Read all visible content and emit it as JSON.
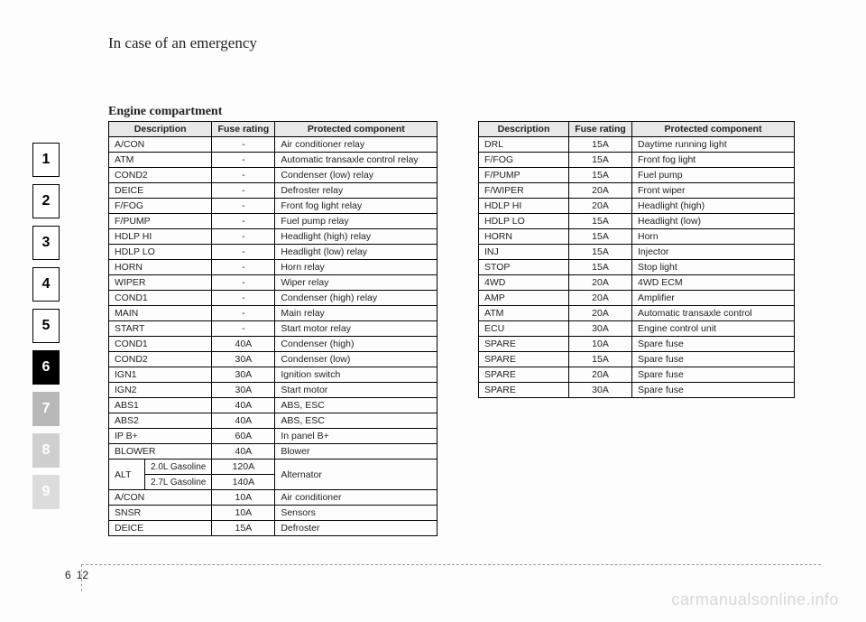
{
  "header": "In case of an emergency",
  "section": "Engine compartment",
  "tabs": [
    "1",
    "2",
    "3",
    "4",
    "5",
    "6",
    "7",
    "8",
    "9"
  ],
  "activeTab": 5,
  "tableHeaders": [
    "Description",
    "Fuse rating",
    "Protected component"
  ],
  "leftRows": [
    [
      "A/CON",
      "-",
      "Air conditioner relay"
    ],
    [
      "ATM",
      "-",
      "Automatic transaxle control relay"
    ],
    [
      "COND2",
      "-",
      "Condenser (low) relay"
    ],
    [
      "DEICE",
      "-",
      "Defroster relay"
    ],
    [
      "F/FOG",
      "-",
      "Front fog light relay"
    ],
    [
      "F/PUMP",
      "-",
      "Fuel pump relay"
    ],
    [
      "HDLP HI",
      "-",
      "Headlight (high) relay"
    ],
    [
      "HDLP LO",
      "-",
      "Headlight (low) relay"
    ],
    [
      "HORN",
      "-",
      "Horn relay"
    ],
    [
      "WIPER",
      "-",
      "Wiper relay"
    ],
    [
      "COND1",
      "-",
      "Condenser (high) relay"
    ],
    [
      "MAIN",
      "-",
      "Main relay"
    ],
    [
      "START",
      "-",
      "Start motor relay"
    ],
    [
      "COND1",
      "40A",
      "Condenser (high)"
    ],
    [
      "COND2",
      "30A",
      "Condenser (low)"
    ],
    [
      "IGN1",
      "30A",
      "Ignition switch"
    ],
    [
      "IGN2",
      "30A",
      "Start motor"
    ],
    [
      "ABS1",
      "40A",
      "ABS, ESC"
    ],
    [
      "ABS2",
      "40A",
      "ABS, ESC"
    ],
    [
      "IP B+",
      "60A",
      "In panel B+"
    ],
    [
      "BLOWER",
      "40A",
      "Blower"
    ]
  ],
  "altRows": {
    "label": "ALT",
    "sub": [
      [
        "2.0L Gasoline",
        "120A"
      ],
      [
        "2.7L Gasoline",
        "140A"
      ]
    ],
    "component": "Alternator"
  },
  "leftTail": [
    [
      "A/CON",
      "10A",
      "Air conditioner"
    ],
    [
      "SNSR",
      "10A",
      "Sensors"
    ],
    [
      "DEICE",
      "15A",
      "Defroster"
    ]
  ],
  "rightRows": [
    [
      "DRL",
      "15A",
      "Daytime running light"
    ],
    [
      "F/FOG",
      "15A",
      "Front fog light"
    ],
    [
      "F/PUMP",
      "15A",
      "Fuel pump"
    ],
    [
      "F/WIPER",
      "20A",
      "Front wiper"
    ],
    [
      "HDLP HI",
      "20A",
      "Headlight (high)"
    ],
    [
      "HDLP LO",
      "15A",
      "Headlight (low)"
    ],
    [
      "HORN",
      "15A",
      "Horn"
    ],
    [
      "INJ",
      "15A",
      "Injector"
    ],
    [
      "STOP",
      "15A",
      "Stop light"
    ],
    [
      "4WD",
      "20A",
      "4WD ECM"
    ],
    [
      "AMP",
      "20A",
      "Amplifier"
    ],
    [
      "ATM",
      "20A",
      "Automatic transaxle control"
    ],
    [
      "ECU",
      "30A",
      "Engine control unit"
    ],
    [
      "SPARE",
      "10A",
      "Spare fuse"
    ],
    [
      "SPARE",
      "15A",
      "Spare fuse"
    ],
    [
      "SPARE",
      "20A",
      "Spare fuse"
    ],
    [
      "SPARE",
      "30A",
      "Spare fuse"
    ]
  ],
  "page": {
    "chapter": "6",
    "num": "12"
  },
  "watermark": "carmanualsonline.info"
}
